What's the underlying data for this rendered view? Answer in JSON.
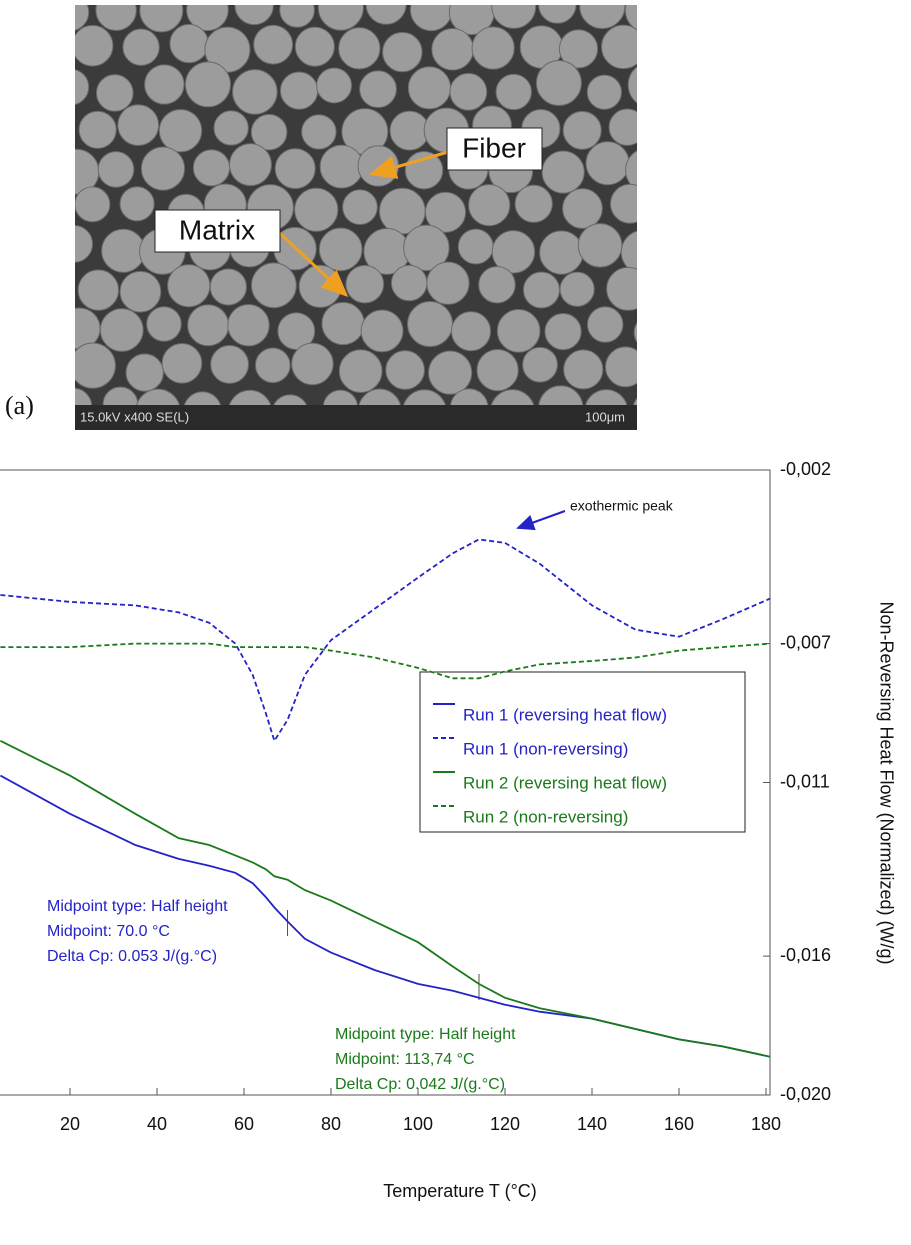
{
  "figure_a": {
    "label": "(a)",
    "fiber_label": "Fiber",
    "matrix_label": "Matrix",
    "sem_info": "15.0kV x400 SE(L)",
    "scale_bar": "100μm"
  },
  "chart_data": {
    "type": "line",
    "x_label": "Temperature T (°C)",
    "y2_label": "Non-Reversing Heat Flow (Normalized)  (W/g)",
    "x": [
      4,
      20,
      35,
      45,
      52,
      58,
      62,
      65,
      67,
      70,
      74,
      80,
      90,
      100,
      108,
      114,
      120,
      128,
      140,
      150,
      160,
      170,
      181
    ],
    "xlim": [
      4,
      181
    ],
    "xticks": [
      20,
      40,
      60,
      80,
      100,
      120,
      140,
      160,
      180
    ],
    "y2lim": [
      -0.02,
      -0.002
    ],
    "y2ticks": [
      {
        "value": -0.002,
        "label": "-0,002"
      },
      {
        "value": -0.007,
        "label": "-0,007"
      },
      {
        "value": -0.011,
        "label": "-0,011"
      },
      {
        "value": -0.016,
        "label": "-0,016"
      },
      {
        "value": -0.02,
        "label": "-0,020"
      }
    ],
    "series": [
      {
        "name": "Run 1 (reversing heat flow)",
        "color": "#2323c8",
        "style": "solid",
        "axis": "y2",
        "values": [
          -0.0108,
          -0.0119,
          -0.0128,
          -0.0132,
          -0.0134,
          -0.0136,
          -0.0139,
          -0.0143,
          -0.0146,
          -0.015,
          -0.0155,
          -0.0159,
          -0.0164,
          -0.0168,
          -0.017,
          -0.0172,
          -0.0174,
          -0.0176,
          -0.0178,
          -0.0181,
          -0.0184,
          -0.0186,
          -0.0189
        ]
      },
      {
        "name": "Run 1 (non-reversing)",
        "color": "#2323c8",
        "style": "dashed",
        "axis": "y2",
        "values": [
          -0.0056,
          -0.0058,
          -0.0059,
          -0.0061,
          -0.0064,
          -0.007,
          -0.0079,
          -0.009,
          -0.0098,
          -0.0092,
          -0.0079,
          -0.0069,
          -0.006,
          -0.0051,
          -0.0044,
          -0.004,
          -0.0041,
          -0.0047,
          -0.0059,
          -0.0066,
          -0.0068,
          -0.0063,
          -0.0057
        ]
      },
      {
        "name": "Run 2 (reversing heat flow)",
        "color": "#1a7a1a",
        "style": "solid",
        "axis": "y2",
        "values": [
          -0.0098,
          -0.0108,
          -0.0119,
          -0.0126,
          -0.0128,
          -0.0131,
          -0.0133,
          -0.0135,
          -0.0137,
          -0.0138,
          -0.0141,
          -0.0144,
          -0.015,
          -0.0156,
          -0.0163,
          -0.0168,
          -0.0172,
          -0.0175,
          -0.0178,
          -0.0181,
          -0.0184,
          -0.0186,
          -0.0189
        ]
      },
      {
        "name": "Run 2 (non-reversing)",
        "color": "#1a7a1a",
        "style": "dashed",
        "axis": "y2",
        "values": [
          -0.0071,
          -0.0071,
          -0.007,
          -0.007,
          -0.007,
          -0.0071,
          -0.0071,
          -0.0071,
          -0.0071,
          -0.0071,
          -0.0071,
          -0.0072,
          -0.0074,
          -0.0077,
          -0.008,
          -0.008,
          -0.0078,
          -0.0076,
          -0.0075,
          -0.0074,
          -0.0072,
          -0.0071,
          -0.007
        ]
      }
    ],
    "annotations": [
      "exothermic peak"
    ],
    "midpoint_notes": [
      [
        "Midpoint type: Half height",
        "Midpoint: 70.0 °C",
        "Delta Cp: 0.053 J/(g.°C)"
      ],
      [
        "Midpoint type: Half height",
        "Midpoint: 113,74 °C",
        "Delta Cp: 0.042 J/(g.°C)"
      ]
    ]
  }
}
